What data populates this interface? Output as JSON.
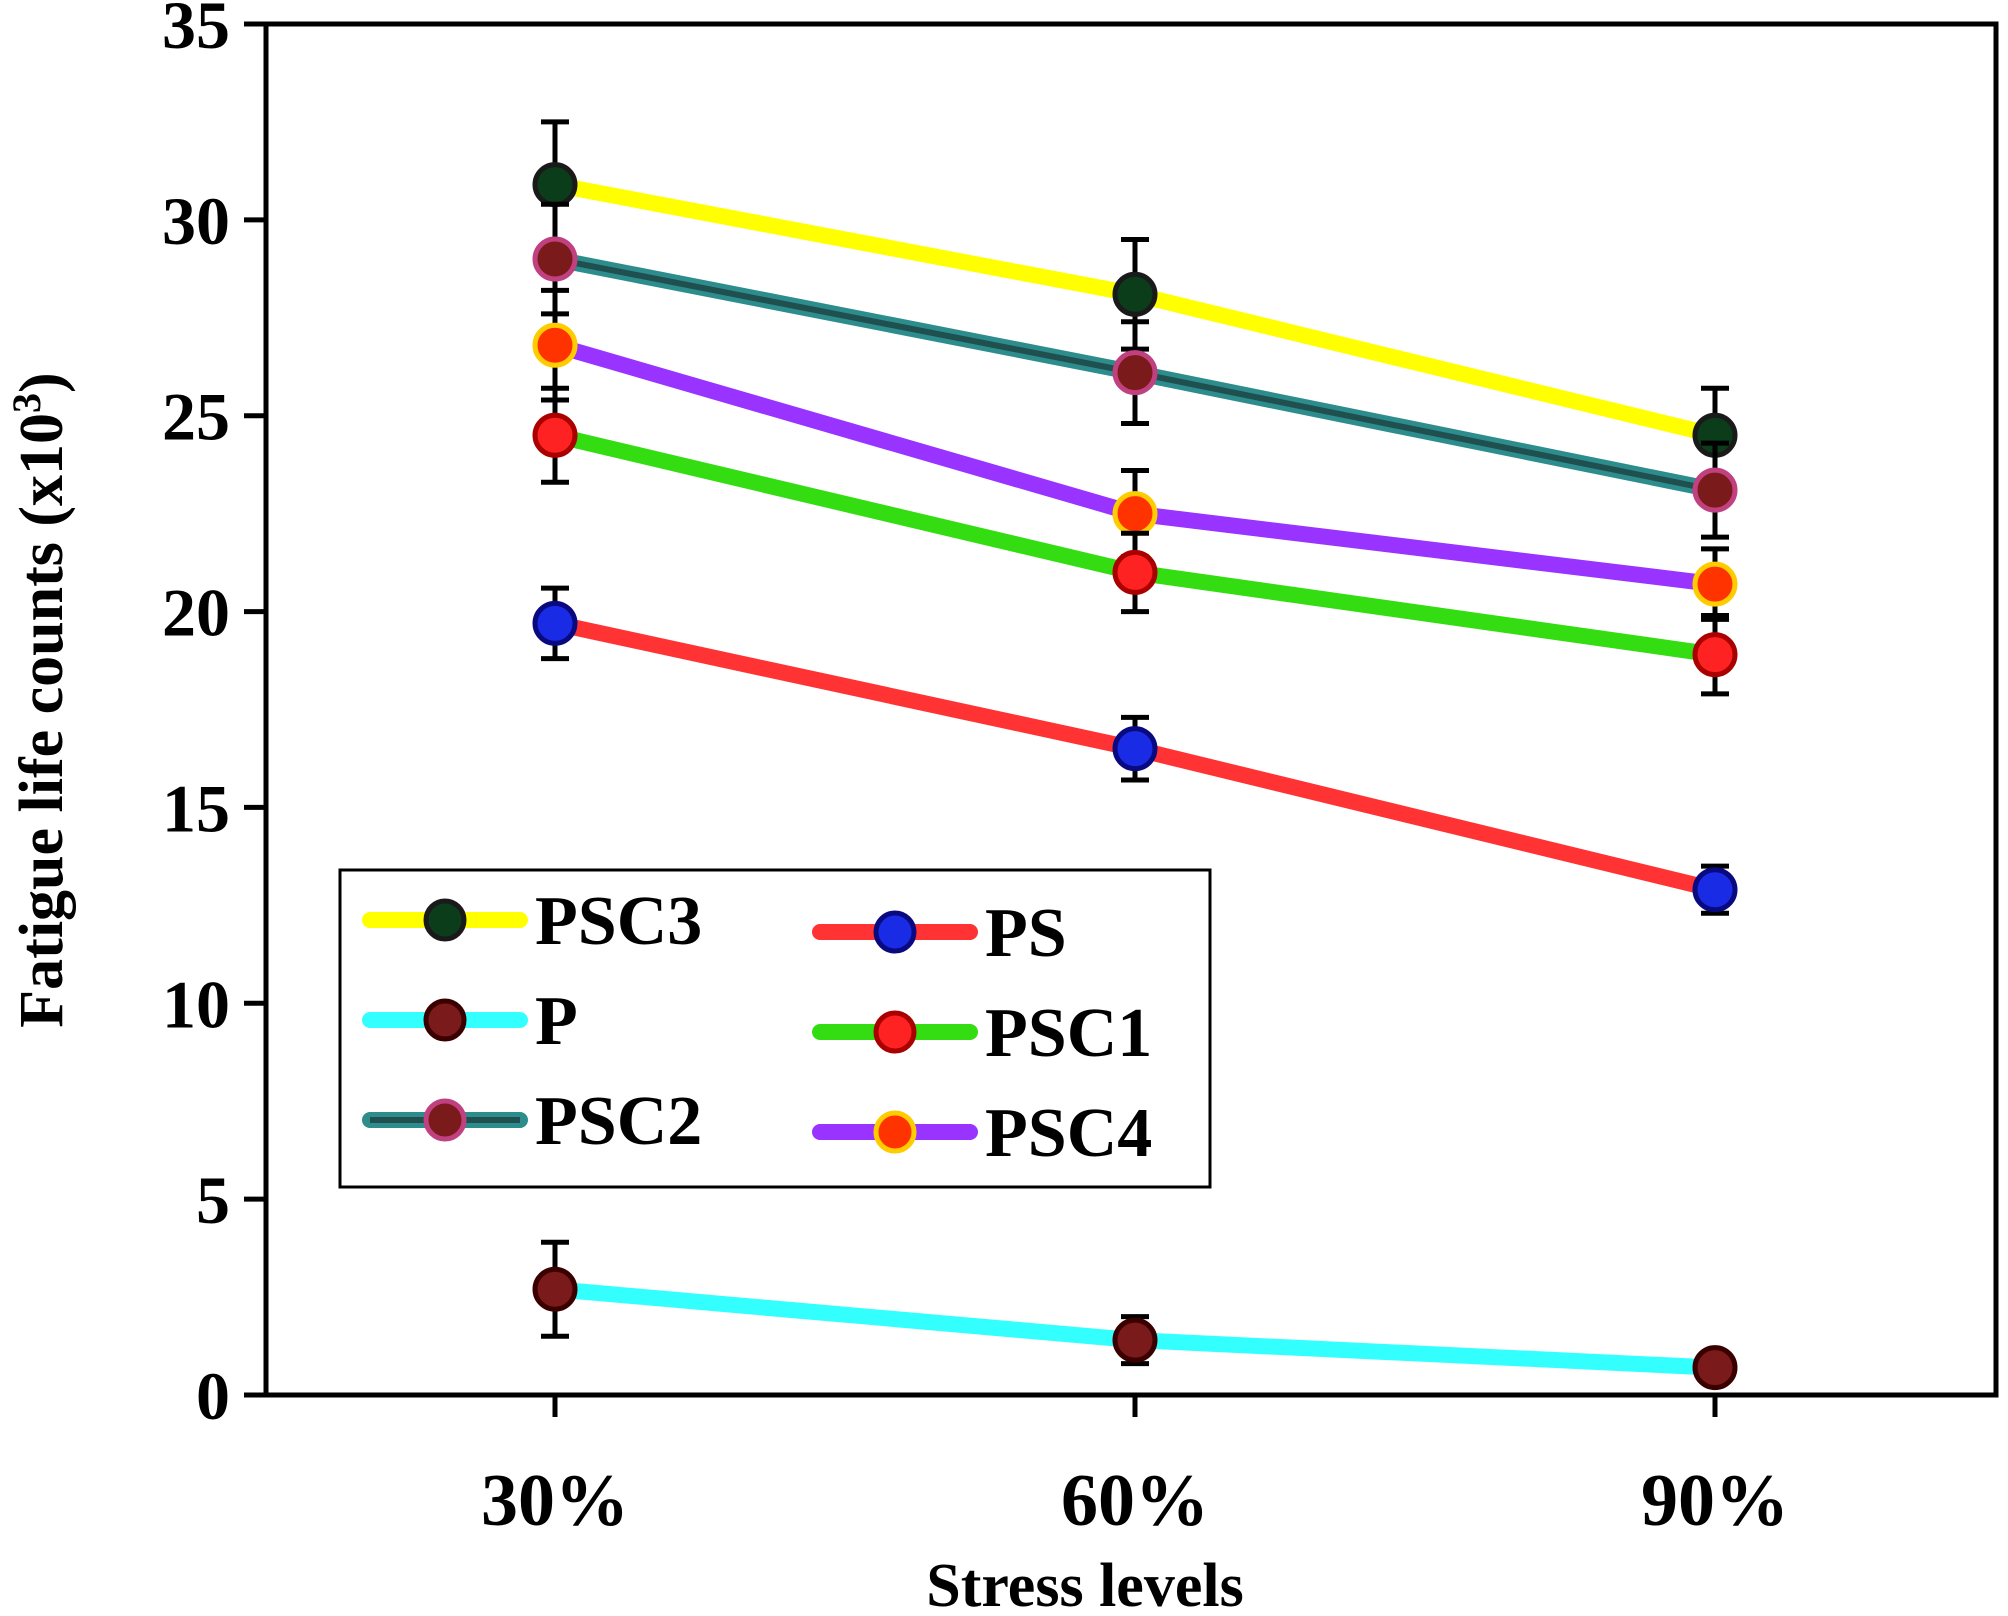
{
  "chart_data": {
    "type": "line",
    "title": "",
    "xlabel": "Stress levels",
    "ylabel": "Fatigue life counts (x10",
    "ylabel_superscript": "3",
    "ylabel_close": ")",
    "categories": [
      "30%",
      "60%",
      "90%"
    ],
    "ylim": [
      0,
      35
    ],
    "yticks": [
      "0",
      "5",
      "10",
      "15",
      "20",
      "25",
      "30",
      "35"
    ],
    "grid": false,
    "legend_position": "lower-left",
    "series": [
      {
        "name": "PSC3",
        "values": [
          30.9,
          28.1,
          24.5
        ],
        "errors": [
          1.6,
          1.4,
          1.2
        ],
        "line_color": "#ffff00",
        "marker_color": "#0b3d1a",
        "marker_edge": "#1a1a1a"
      },
      {
        "name": "PSC2",
        "values": [
          29.0,
          26.1,
          23.1
        ],
        "errors": [
          1.4,
          1.3,
          1.2
        ],
        "line_color": "#2d8c8c",
        "line_color2": "#1f4f4f",
        "marker_color": "#7a1a1a",
        "marker_edge": "#c04080"
      },
      {
        "name": "PSC4",
        "values": [
          26.8,
          22.5,
          20.7
        ],
        "errors": [
          1.4,
          1.1,
          0.9
        ],
        "line_color": "#9933ff",
        "marker_color": "#ff3300",
        "marker_edge": "#ffcc00"
      },
      {
        "name": "PSC1",
        "values": [
          24.5,
          21.0,
          18.9
        ],
        "errors": [
          1.2,
          1.0,
          1.0
        ],
        "line_color": "#33dd11",
        "marker_color": "#ff2222",
        "marker_edge": "#aa0000"
      },
      {
        "name": "PS",
        "values": [
          19.7,
          16.5,
          12.9
        ],
        "errors": [
          0.9,
          0.8,
          0.6
        ],
        "line_color": "#ff3333",
        "marker_color": "#1a2be6",
        "marker_edge": "#0a0a80"
      },
      {
        "name": "P",
        "values": [
          2.7,
          1.4,
          0.7
        ],
        "errors": [
          1.2,
          0.6,
          0.3
        ],
        "line_color": "#33ffff",
        "marker_color": "#7a1a1a",
        "marker_edge": "#3a0000"
      }
    ],
    "legend": [
      {
        "name": "PSC3"
      },
      {
        "name": "PS"
      },
      {
        "name": "P"
      },
      {
        "name": "PSC1"
      },
      {
        "name": "PSC2"
      },
      {
        "name": "PSC4"
      }
    ]
  }
}
